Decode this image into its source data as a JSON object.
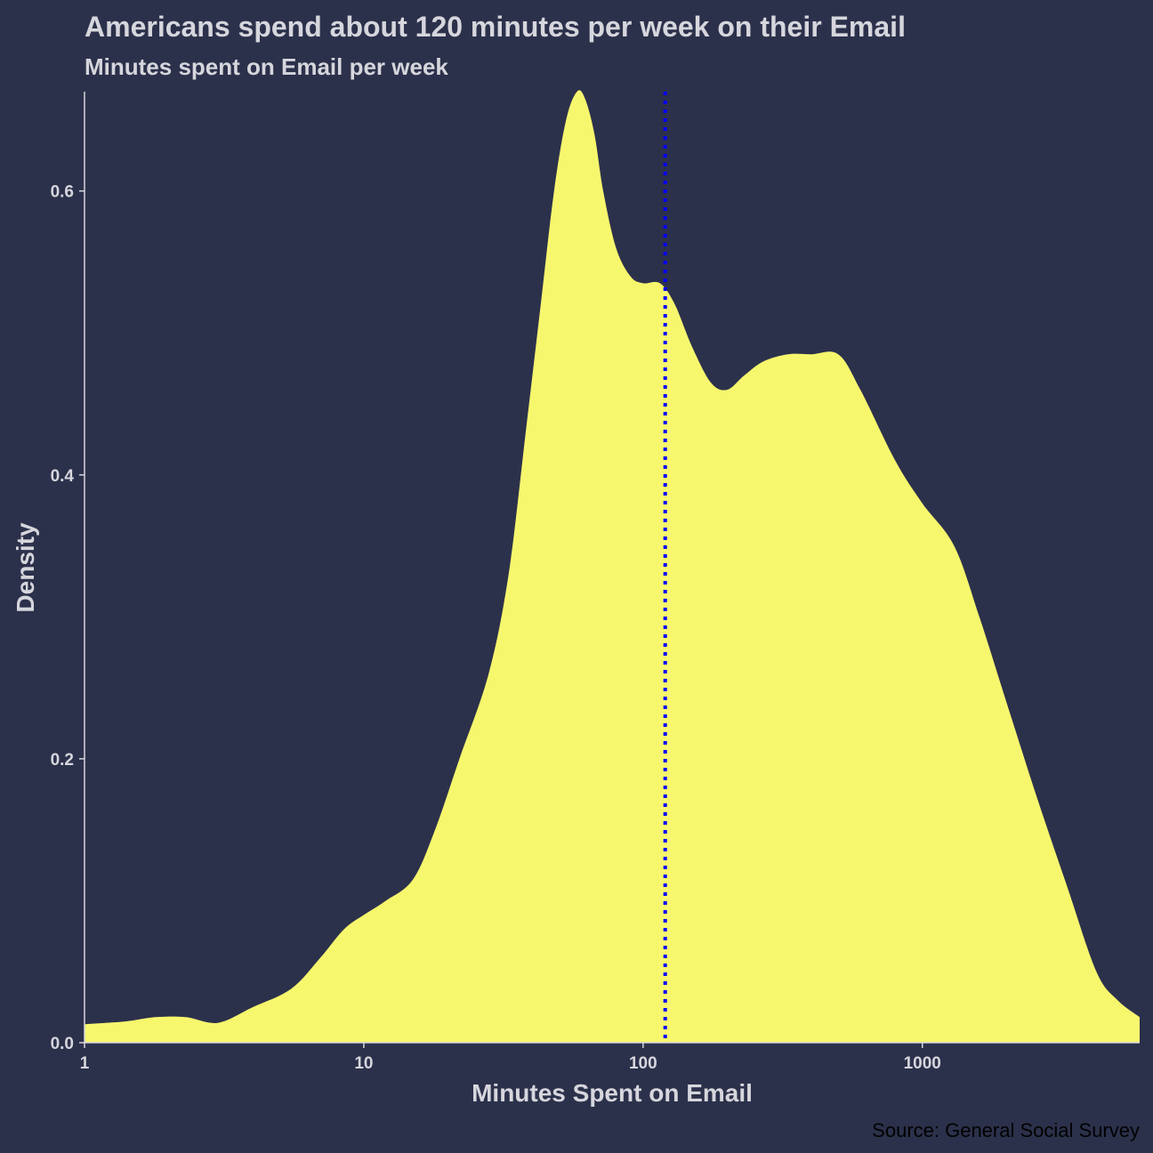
{
  "colors": {
    "background": "#2c314b",
    "density_fill": "#f7f76e",
    "reference_line": "#0000ff",
    "axis": "#d6d6dd",
    "caption": "#000000"
  },
  "chart_data": {
    "type": "area",
    "title": "Americans spend about 120 minutes per week on their Email",
    "subtitle": "Minutes spent on Email per week",
    "xlabel": "Minutes Spent on Email",
    "ylabel": "Density",
    "caption": "Source: General Social Survey",
    "x_scale": "log10",
    "xlim": [
      1,
      6000
    ],
    "ylim": [
      0,
      0.67
    ],
    "x_ticks": [
      {
        "value": 1,
        "label": "1"
      },
      {
        "value": 10,
        "label": "10"
      },
      {
        "value": 100,
        "label": "100"
      },
      {
        "value": 1000,
        "label": "1000"
      }
    ],
    "y_ticks": [
      {
        "value": 0,
        "label": "0.0"
      },
      {
        "value": 0.2,
        "label": "0.2"
      },
      {
        "value": 0.4,
        "label": "0.4"
      },
      {
        "value": 0.6,
        "label": "0.6"
      }
    ],
    "grid": false,
    "reference_line": {
      "x": 120,
      "style": "dotted"
    },
    "series": [
      {
        "x": [
          1,
          1.4,
          1.8,
          2.3,
          3,
          4,
          5.5,
          7,
          8.5,
          10,
          12,
          15,
          18,
          22,
          28,
          33,
          38,
          43,
          48,
          53,
          58,
          62,
          67,
          72,
          80,
          90,
          100,
          115,
          130,
          150,
          175,
          200,
          230,
          270,
          330,
          400,
          500,
          600,
          800,
          1000,
          1300,
          1600,
          2000,
          2600,
          3300,
          4200,
          5000,
          6000
        ],
        "y": [
          0.013,
          0.015,
          0.018,
          0.018,
          0.014,
          0.025,
          0.038,
          0.06,
          0.08,
          0.09,
          0.1,
          0.115,
          0.15,
          0.2,
          0.26,
          0.33,
          0.43,
          0.52,
          0.6,
          0.65,
          0.67,
          0.665,
          0.64,
          0.6,
          0.56,
          0.54,
          0.535,
          0.535,
          0.52,
          0.49,
          0.465,
          0.46,
          0.47,
          0.48,
          0.485,
          0.485,
          0.485,
          0.46,
          0.41,
          0.38,
          0.35,
          0.3,
          0.24,
          0.17,
          0.11,
          0.05,
          0.03,
          0.018
        ]
      }
    ]
  }
}
